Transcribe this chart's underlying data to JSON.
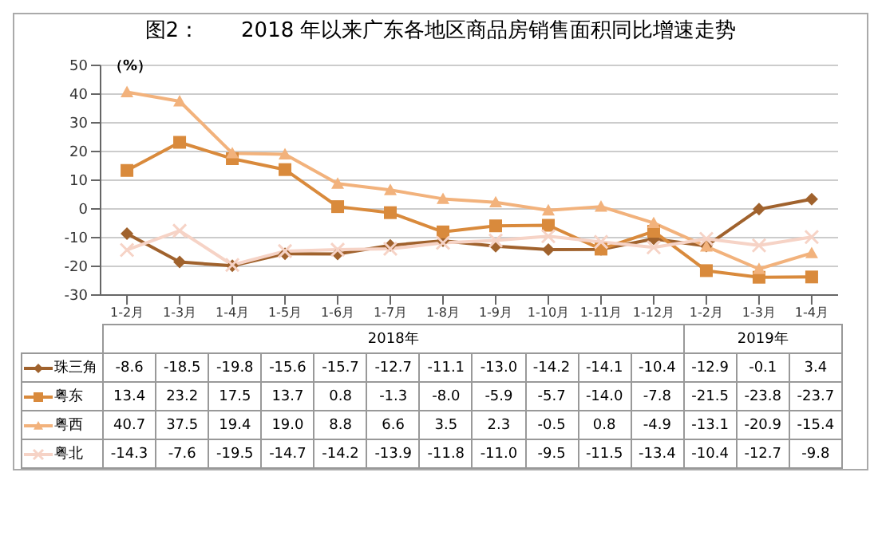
{
  "chart_data": {
    "type": "line",
    "title": "图2：　　2018 年以来广东各地区商品房销售面积同比增速走势",
    "ylabel": "（%）",
    "categories": [
      "1-2月",
      "1-3月",
      "1-4月",
      "1-5月",
      "1-6月",
      "1-7月",
      "1-8月",
      "1-9月",
      "1-10月",
      "1-11月",
      "1-12月",
      "1-2月",
      "1-3月",
      "1-4月"
    ],
    "annotations": [
      "2018年",
      "2019年"
    ],
    "series": [
      {
        "name": "珠三角",
        "color": "#a0622d",
        "marker": "diamond",
        "values": [
          -8.6,
          -18.5,
          -19.8,
          -15.6,
          -15.7,
          -12.7,
          -11.1,
          -13.0,
          -14.2,
          -14.1,
          -10.4,
          -12.9,
          -0.1,
          3.4
        ],
        "value_labels": [
          "-8.6",
          "-18.5",
          "-19.8",
          "-15.6",
          "-15.7",
          "-12.7",
          "-11.1",
          "-13.0",
          "-14.2",
          "-14.1",
          "-10.4",
          "-12.9",
          "-0.1",
          "3.4"
        ]
      },
      {
        "name": "粤东",
        "color": "#d98a3c",
        "marker": "square",
        "values": [
          13.4,
          23.2,
          17.5,
          13.7,
          0.8,
          -1.3,
          -8.0,
          -5.9,
          -5.7,
          -14.0,
          -7.8,
          -21.5,
          -23.8,
          -23.7
        ],
        "value_labels": [
          "13.4",
          "23.2",
          "17.5",
          "13.7",
          "0.8",
          "-1.3",
          "-8.0",
          "-5.9",
          "-5.7",
          "-14.0",
          "-7.8",
          "-21.5",
          "-23.8",
          "-23.7"
        ]
      },
      {
        "name": "粤西",
        "color": "#f2b27c",
        "marker": "triangle",
        "values": [
          40.7,
          37.5,
          19.4,
          19.0,
          8.8,
          6.6,
          3.5,
          2.3,
          -0.5,
          0.8,
          -4.9,
          -13.1,
          -20.9,
          -15.4
        ],
        "value_labels": [
          "40.7",
          "37.5",
          "19.4",
          "19.0",
          "8.8",
          "6.6",
          "3.5",
          "2.3",
          "-0.5",
          "0.8",
          "-4.9",
          "-13.1",
          "-20.9",
          "-15.4"
        ]
      },
      {
        "name": "粤北",
        "color": "#f6d3c6",
        "marker": "cross",
        "values": [
          -14.3,
          -7.6,
          -19.5,
          -14.7,
          -14.2,
          -13.9,
          -11.8,
          -11.0,
          -9.5,
          -11.5,
          -13.4,
          -10.4,
          -12.7,
          -9.8
        ],
        "value_labels": [
          "-14.3",
          "-7.6",
          "-19.5",
          "-14.7",
          "-14.2",
          "-13.9",
          "-11.8",
          "-11.0",
          "-9.5",
          "-11.5",
          "-13.4",
          "-10.4",
          "-12.7",
          "-9.8"
        ]
      }
    ],
    "ylim": [
      -30,
      50
    ],
    "yticks": [
      -30,
      -20,
      -10,
      0,
      10,
      20,
      30,
      40,
      50
    ],
    "grid": "y",
    "legend": "bottom"
  }
}
